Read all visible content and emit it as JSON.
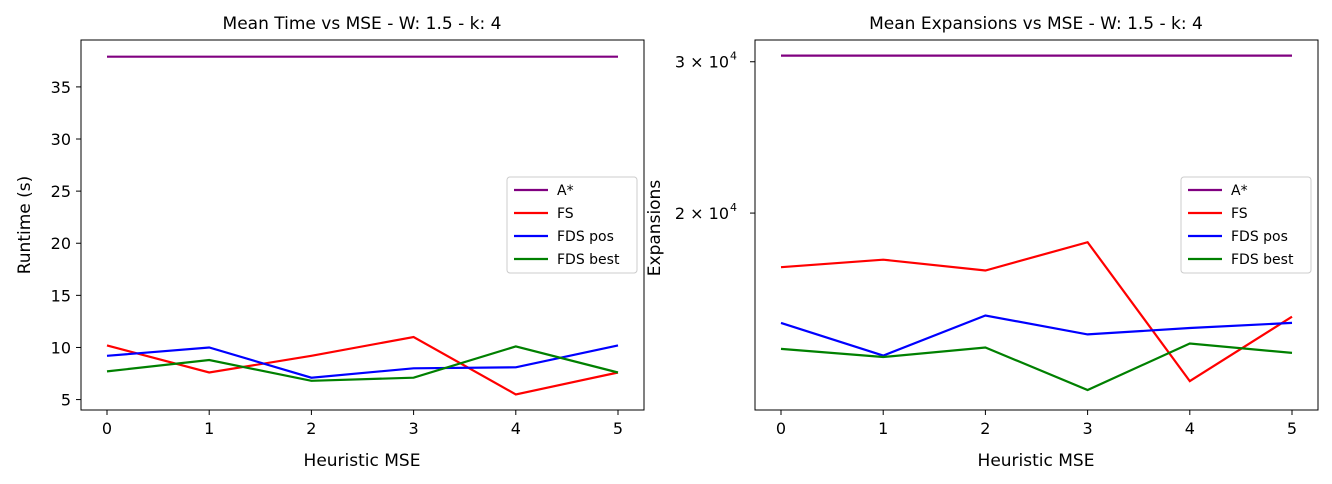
{
  "chart_data": [
    {
      "type": "line",
      "title": "Mean Time vs MSE - W: 1.5 - k: 4",
      "xlabel": "Heuristic MSE",
      "ylabel": "Runtime (s)",
      "x": [
        0,
        1,
        2,
        3,
        4,
        5
      ],
      "xticks": [
        "0",
        "1",
        "2",
        "3",
        "4",
        "5"
      ],
      "yticks": [
        "5",
        "10",
        "15",
        "20",
        "25",
        "30",
        "35"
      ],
      "ytick_values": [
        5,
        10,
        15,
        20,
        25,
        30,
        35
      ],
      "ylim": [
        4,
        39.5
      ],
      "yscale": "linear",
      "legend": "center-right",
      "series": [
        {
          "name": "A*",
          "color": "#800080",
          "values": [
            37.9,
            37.9,
            37.9,
            37.9,
            37.9,
            37.9
          ]
        },
        {
          "name": "FS",
          "color": "#ff0000",
          "values": [
            10.2,
            7.6,
            9.2,
            11.0,
            5.5,
            7.6
          ]
        },
        {
          "name": "FDS pos",
          "color": "#0000ff",
          "values": [
            9.2,
            10.0,
            7.1,
            8.0,
            8.1,
            10.2
          ]
        },
        {
          "name": "FDS best",
          "color": "#008000",
          "values": [
            7.7,
            8.8,
            6.8,
            7.1,
            10.1,
            7.6
          ]
        }
      ]
    },
    {
      "type": "line",
      "title": "Mean Expansions vs MSE - W: 1.5 - k: 4",
      "xlabel": "Heuristic MSE",
      "ylabel": "Expansions",
      "x": [
        0,
        1,
        2,
        3,
        4,
        5
      ],
      "xticks": [
        "0",
        "1",
        "2",
        "3",
        "4",
        "5"
      ],
      "yticks": [
        "3 × 10",
        "2 × 10"
      ],
      "ytick_exp": "4",
      "ytick_values": [
        30000,
        20000
      ],
      "ylim": [
        11800,
        31800
      ],
      "yscale": "log",
      "legend": "center-right",
      "series": [
        {
          "name": "A*",
          "color": "#800080",
          "values": [
            30500,
            30500,
            30500,
            30500,
            30500,
            30500
          ]
        },
        {
          "name": "FS",
          "color": "#ff0000",
          "values": [
            17300,
            17650,
            17150,
            18500,
            12750,
            15150
          ]
        },
        {
          "name": "FDS pos",
          "color": "#0000ff",
          "values": [
            14900,
            13650,
            15200,
            14450,
            14700,
            14900
          ]
        },
        {
          "name": "FDS best",
          "color": "#008000",
          "values": [
            13900,
            13600,
            13950,
            12450,
            14100,
            13750
          ]
        }
      ]
    }
  ]
}
